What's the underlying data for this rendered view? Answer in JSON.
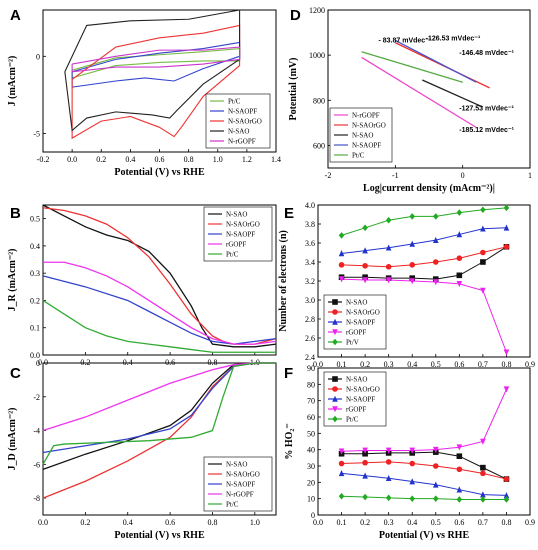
{
  "chart_data": [
    {
      "panel": "A",
      "type": "line",
      "xlabel": "Potential (V) vs RHE",
      "ylabel": "J (mAcm⁻²)",
      "xlim": [
        -0.2,
        1.4
      ],
      "ylim": [
        -6.2,
        3.0
      ],
      "xticks": [
        "-0.2",
        "0.0",
        "0.2",
        "0.4",
        "0.6",
        "0.8",
        "1.0",
        "1.2",
        "1.4"
      ],
      "yticks": [
        "-5",
        "0"
      ],
      "legend_position": "bottom-right",
      "series": [
        {
          "name": "Pt/C",
          "color": "#77bb44",
          "upper": [
            [
              0.0,
              -0.9
            ],
            [
              0.3,
              -0.1
            ],
            [
              0.6,
              0.1
            ],
            [
              0.9,
              0.3
            ],
            [
              1.15,
              0.5
            ]
          ],
          "lower": [
            [
              1.15,
              -0.3
            ],
            [
              0.9,
              -0.3
            ],
            [
              0.6,
              -0.4
            ],
            [
              0.3,
              -0.6
            ],
            [
              0.0,
              -1.4
            ]
          ]
        },
        {
          "name": "N-SAOPF",
          "color": "#3344cc",
          "upper": [
            [
              0.0,
              -1.0
            ],
            [
              0.3,
              -0.2
            ],
            [
              0.6,
              0.2
            ],
            [
              0.9,
              0.5
            ],
            [
              1.15,
              0.9
            ]
          ],
          "lower": [
            [
              1.15,
              0.0
            ],
            [
              0.9,
              -0.8
            ],
            [
              0.7,
              -1.6
            ],
            [
              0.5,
              -1.4
            ],
            [
              0.3,
              -1.6
            ],
            [
              0.0,
              -2.0
            ]
          ]
        },
        {
          "name": "N-SAOrGO",
          "color": "#ee3333",
          "upper": [
            [
              0.0,
              -1.5
            ],
            [
              0.3,
              0.6
            ],
            [
              0.6,
              1.2
            ],
            [
              0.9,
              1.5
            ],
            [
              1.15,
              2.0
            ]
          ],
          "lower": [
            [
              1.15,
              -0.6
            ],
            [
              0.9,
              -2.6
            ],
            [
              0.75,
              -4.6
            ],
            [
              0.7,
              -5.2
            ],
            [
              0.6,
              -4.6
            ],
            [
              0.4,
              -3.9
            ],
            [
              0.2,
              -4.2
            ],
            [
              0.0,
              -5.3
            ]
          ]
        },
        {
          "name": "N-SAO",
          "color": "#222222",
          "upper": [
            [
              -0.05,
              -1.0
            ],
            [
              0.1,
              2.0
            ],
            [
              0.4,
              2.3
            ],
            [
              0.8,
              2.4
            ],
            [
              1.15,
              3.0
            ]
          ],
          "lower": [
            [
              1.15,
              -0.2
            ],
            [
              0.9,
              -1.8
            ],
            [
              0.72,
              -3.5
            ],
            [
              0.67,
              -4.0
            ],
            [
              0.55,
              -3.8
            ],
            [
              0.3,
              -3.6
            ],
            [
              0.1,
              -4.0
            ],
            [
              0.0,
              -4.8
            ]
          ]
        },
        {
          "name": "N-rGOPF",
          "color": "#cc33cc",
          "upper": [
            [
              0.0,
              -0.5
            ],
            [
              0.3,
              0.0
            ],
            [
              0.6,
              0.4
            ],
            [
              0.9,
              0.4
            ],
            [
              1.15,
              0.6
            ]
          ],
          "lower": [
            [
              1.15,
              -0.2
            ],
            [
              0.9,
              -0.5
            ],
            [
              0.6,
              -0.7
            ],
            [
              0.3,
              -0.7
            ],
            [
              0.0,
              -1.0
            ]
          ]
        }
      ]
    },
    {
      "panel": "D",
      "type": "line",
      "xlabel": "Log|current density (mAcm⁻²)|",
      "ylabel": "Potential (mV)",
      "xlim": [
        -2.0,
        1.0
      ],
      "ylim": [
        500,
        1200
      ],
      "xticks": [
        "-2",
        "-1",
        "0",
        "1"
      ],
      "yticks": [
        "600",
        "800",
        "1000",
        "1200"
      ],
      "legend_position": "bottom-left",
      "series": [
        {
          "name": "N-rGOPF",
          "color": "#ee44cc",
          "x": [
            -1.5,
            0.2
          ],
          "y": [
            990,
            680
          ]
        },
        {
          "name": "N-SAOrGO",
          "color": "#ee3333",
          "x": [
            -1.0,
            0.4
          ],
          "y": [
            1055,
            855
          ]
        },
        {
          "name": "N-SAO",
          "color": "#222222",
          "x": [
            -0.6,
            0.3
          ],
          "y": [
            890,
            770
          ]
        },
        {
          "name": "N-SAOPF",
          "color": "#4455cc",
          "x": [
            -1.0,
            0.2
          ],
          "y": [
            1065,
            880
          ]
        },
        {
          "name": "Pt/C",
          "color": "#55aa44",
          "x": [
            -1.5,
            0.0
          ],
          "y": [
            1015,
            880
          ]
        }
      ],
      "annotations": [
        "- 83.87 mVdec⁻¹",
        "-126.53 mVdec⁻¹",
        "-146.48 mVdec⁻¹",
        "-127.53 mVdec⁻¹",
        "-185.12 mVdec⁻¹"
      ]
    },
    {
      "panel": "B",
      "type": "line",
      "xlabel": "",
      "ylabel": "J_R (mAcm⁻²)",
      "xlim": [
        0.0,
        1.1
      ],
      "ylim": [
        0.0,
        0.55
      ],
      "xticks": [
        "0.0",
        "0.2",
        "0.4",
        "0.6",
        "0.8",
        "1.0"
      ],
      "yticks": [
        "0.0",
        "0.1",
        "0.2",
        "0.3",
        "0.4",
        "0.5"
      ],
      "legend_position": "top-right",
      "series": [
        {
          "name": "N-SAO",
          "color": "#111111",
          "x": [
            0.0,
            0.1,
            0.2,
            0.3,
            0.4,
            0.5,
            0.6,
            0.7,
            0.75,
            0.8,
            0.9,
            1.0,
            1.1
          ],
          "y": [
            0.55,
            0.51,
            0.47,
            0.44,
            0.42,
            0.38,
            0.3,
            0.18,
            0.1,
            0.04,
            0.03,
            0.03,
            0.04
          ]
        },
        {
          "name": "N-SAOrGO",
          "color": "#ee3333",
          "x": [
            0.0,
            0.1,
            0.2,
            0.3,
            0.4,
            0.5,
            0.6,
            0.7,
            0.8,
            0.85,
            0.9,
            1.0,
            1.1
          ],
          "y": [
            0.54,
            0.53,
            0.51,
            0.48,
            0.43,
            0.36,
            0.26,
            0.15,
            0.07,
            0.05,
            0.04,
            0.04,
            0.06
          ]
        },
        {
          "name": "N-SAOPF",
          "color": "#3344cc",
          "x": [
            0.0,
            0.2,
            0.4,
            0.5,
            0.6,
            0.7,
            0.8,
            0.9,
            1.0,
            1.1
          ],
          "y": [
            0.29,
            0.25,
            0.2,
            0.16,
            0.12,
            0.08,
            0.05,
            0.04,
            0.05,
            0.06
          ]
        },
        {
          "name": "rGOPF",
          "color": "#ee33ee",
          "x": [
            0.0,
            0.1,
            0.2,
            0.3,
            0.4,
            0.5,
            0.6,
            0.7,
            0.8,
            0.9,
            1.0,
            1.1
          ],
          "y": [
            0.34,
            0.34,
            0.32,
            0.29,
            0.25,
            0.2,
            0.15,
            0.1,
            0.06,
            0.04,
            0.04,
            0.05
          ]
        },
        {
          "name": "Pt/C",
          "color": "#33aa33",
          "x": [
            0.0,
            0.1,
            0.2,
            0.3,
            0.4,
            0.5,
            0.6,
            0.7,
            0.8,
            0.9,
            1.0,
            1.1
          ],
          "y": [
            0.2,
            0.15,
            0.1,
            0.07,
            0.05,
            0.04,
            0.03,
            0.02,
            0.01,
            0.01,
            0.01,
            0.01
          ]
        }
      ]
    },
    {
      "panel": "E",
      "type": "line",
      "xlabel": "",
      "ylabel": "Number of electrons (n)",
      "xlim": [
        0.0,
        0.9
      ],
      "ylim": [
        2.4,
        4.0
      ],
      "xticks": [
        "0.0",
        "0.1",
        "0.2",
        "0.3",
        "0.4",
        "0.5",
        "0.6",
        "0.7",
        "0.8",
        "0.9"
      ],
      "yticks": [
        "2.4",
        "2.6",
        "2.8",
        "3.0",
        "3.2",
        "3.4",
        "3.6",
        "3.8",
        "4.0"
      ],
      "legend_position": "bottom-left",
      "x": [
        0.1,
        0.2,
        0.3,
        0.4,
        0.5,
        0.6,
        0.7,
        0.8
      ],
      "series": [
        {
          "name": "N-SAO",
          "color": "#111111",
          "marker": "square",
          "values": [
            3.24,
            3.24,
            3.23,
            3.23,
            3.22,
            3.26,
            3.4,
            3.56
          ]
        },
        {
          "name": "N-SAOrGO",
          "color": "#ee2222",
          "marker": "circle",
          "values": [
            3.37,
            3.36,
            3.35,
            3.37,
            3.4,
            3.44,
            3.5,
            3.56
          ]
        },
        {
          "name": "N-SAOPF",
          "color": "#2233cc",
          "marker": "triangle",
          "values": [
            3.49,
            3.52,
            3.55,
            3.59,
            3.63,
            3.69,
            3.75,
            3.76
          ]
        },
        {
          "name": "rGOPF",
          "color": "#ee22ee",
          "marker": "triangle-down",
          "values": [
            3.22,
            3.21,
            3.21,
            3.2,
            3.19,
            3.17,
            3.1,
            2.45
          ]
        },
        {
          "name": "Pt/V",
          "color": "#22aa22",
          "marker": "diamond",
          "values": [
            3.68,
            3.76,
            3.84,
            3.88,
            3.88,
            3.92,
            3.95,
            3.97
          ]
        }
      ]
    },
    {
      "panel": "C",
      "type": "line",
      "xlabel": "Potential (V) vs RHE",
      "ylabel": "J_D (mAcm⁻²)",
      "xlim": [
        0.0,
        1.1
      ],
      "ylim": [
        -9.0,
        0.0
      ],
      "xticks": [
        "0.0",
        "0.2",
        "0.4",
        "0.6",
        "0.8",
        "1.0"
      ],
      "yticks": [
        "-8",
        "-6",
        "-4",
        "-2",
        "0"
      ],
      "legend_position": "bottom-right",
      "series": [
        {
          "name": "N-SAO",
          "color": "#111111",
          "x": [
            0.0,
            0.2,
            0.4,
            0.6,
            0.7,
            0.8,
            0.9,
            1.0,
            1.1
          ],
          "y": [
            -6.3,
            -5.4,
            -4.6,
            -3.7,
            -2.8,
            -1.2,
            -0.1,
            0.0,
            0.0
          ]
        },
        {
          "name": "N-SAOrGO",
          "color": "#ee3333",
          "x": [
            0.0,
            0.2,
            0.4,
            0.6,
            0.7,
            0.8,
            0.9,
            1.0,
            1.1
          ],
          "y": [
            -8.0,
            -7.0,
            -5.8,
            -4.4,
            -3.2,
            -1.4,
            -0.2,
            0.0,
            0.0
          ]
        },
        {
          "name": "N-SAOPF",
          "color": "#3344cc",
          "x": [
            0.0,
            0.2,
            0.4,
            0.6,
            0.7,
            0.8,
            0.9,
            1.0,
            1.1
          ],
          "y": [
            -5.3,
            -4.9,
            -4.5,
            -3.9,
            -3.1,
            -1.5,
            -0.2,
            0.0,
            0.0
          ]
        },
        {
          "name": "N-rGOPF",
          "color": "#ee33ee",
          "x": [
            0.0,
            0.2,
            0.4,
            0.5,
            0.6,
            0.7,
            0.8,
            0.9,
            1.0,
            1.1
          ],
          "y": [
            -4.0,
            -3.2,
            -2.2,
            -1.7,
            -1.2,
            -0.8,
            -0.4,
            -0.1,
            0.0,
            0.0
          ]
        },
        {
          "name": "Pt/C",
          "color": "#33aa33",
          "x": [
            0.0,
            0.05,
            0.1,
            0.3,
            0.5,
            0.7,
            0.8,
            0.85,
            0.9,
            1.0,
            1.1
          ],
          "y": [
            -6.0,
            -4.9,
            -4.8,
            -4.7,
            -4.6,
            -4.4,
            -4.0,
            -2.0,
            -0.2,
            0.0,
            0.0
          ]
        }
      ]
    },
    {
      "panel": "F",
      "type": "line",
      "xlabel": "Potential (V) vs RHE",
      "ylabel": "% HO₂⁻",
      "xlim": [
        0.0,
        0.9
      ],
      "ylim": [
        0,
        90
      ],
      "xticks": [
        "0.0",
        "0.1",
        "0.2",
        "0.3",
        "0.4",
        "0.5",
        "0.6",
        "0.7",
        "0.8",
        "0.9"
      ],
      "yticks": [
        "0",
        "10",
        "20",
        "30",
        "40",
        "50",
        "60",
        "70",
        "80",
        "90"
      ],
      "legend_position": "top-left",
      "x": [
        0.1,
        0.2,
        0.3,
        0.4,
        0.5,
        0.6,
        0.7,
        0.8
      ],
      "series": [
        {
          "name": "N-SAO",
          "color": "#111111",
          "marker": "square",
          "values": [
            37.5,
            37.5,
            38.0,
            38.0,
            38.5,
            36.0,
            29.0,
            22.0
          ]
        },
        {
          "name": "N-SAOrGO",
          "color": "#ee2222",
          "marker": "circle",
          "values": [
            31.5,
            32.0,
            32.5,
            31.5,
            30.0,
            28.0,
            25.5,
            22.0
          ]
        },
        {
          "name": "N-SAOPF",
          "color": "#2233cc",
          "marker": "triangle",
          "values": [
            25.5,
            24.0,
            22.5,
            20.5,
            18.5,
            15.5,
            12.5,
            12.0
          ]
        },
        {
          "name": "rGOPF",
          "color": "#ee22ee",
          "marker": "triangle-down",
          "values": [
            39.0,
            39.5,
            39.5,
            39.5,
            40.0,
            41.5,
            45.0,
            77.0
          ]
        },
        {
          "name": "Pt/C",
          "color": "#22aa22",
          "marker": "diamond",
          "values": [
            11.5,
            11.0,
            10.5,
            10.0,
            10.0,
            9.5,
            9.5,
            9.5
          ]
        }
      ]
    }
  ]
}
